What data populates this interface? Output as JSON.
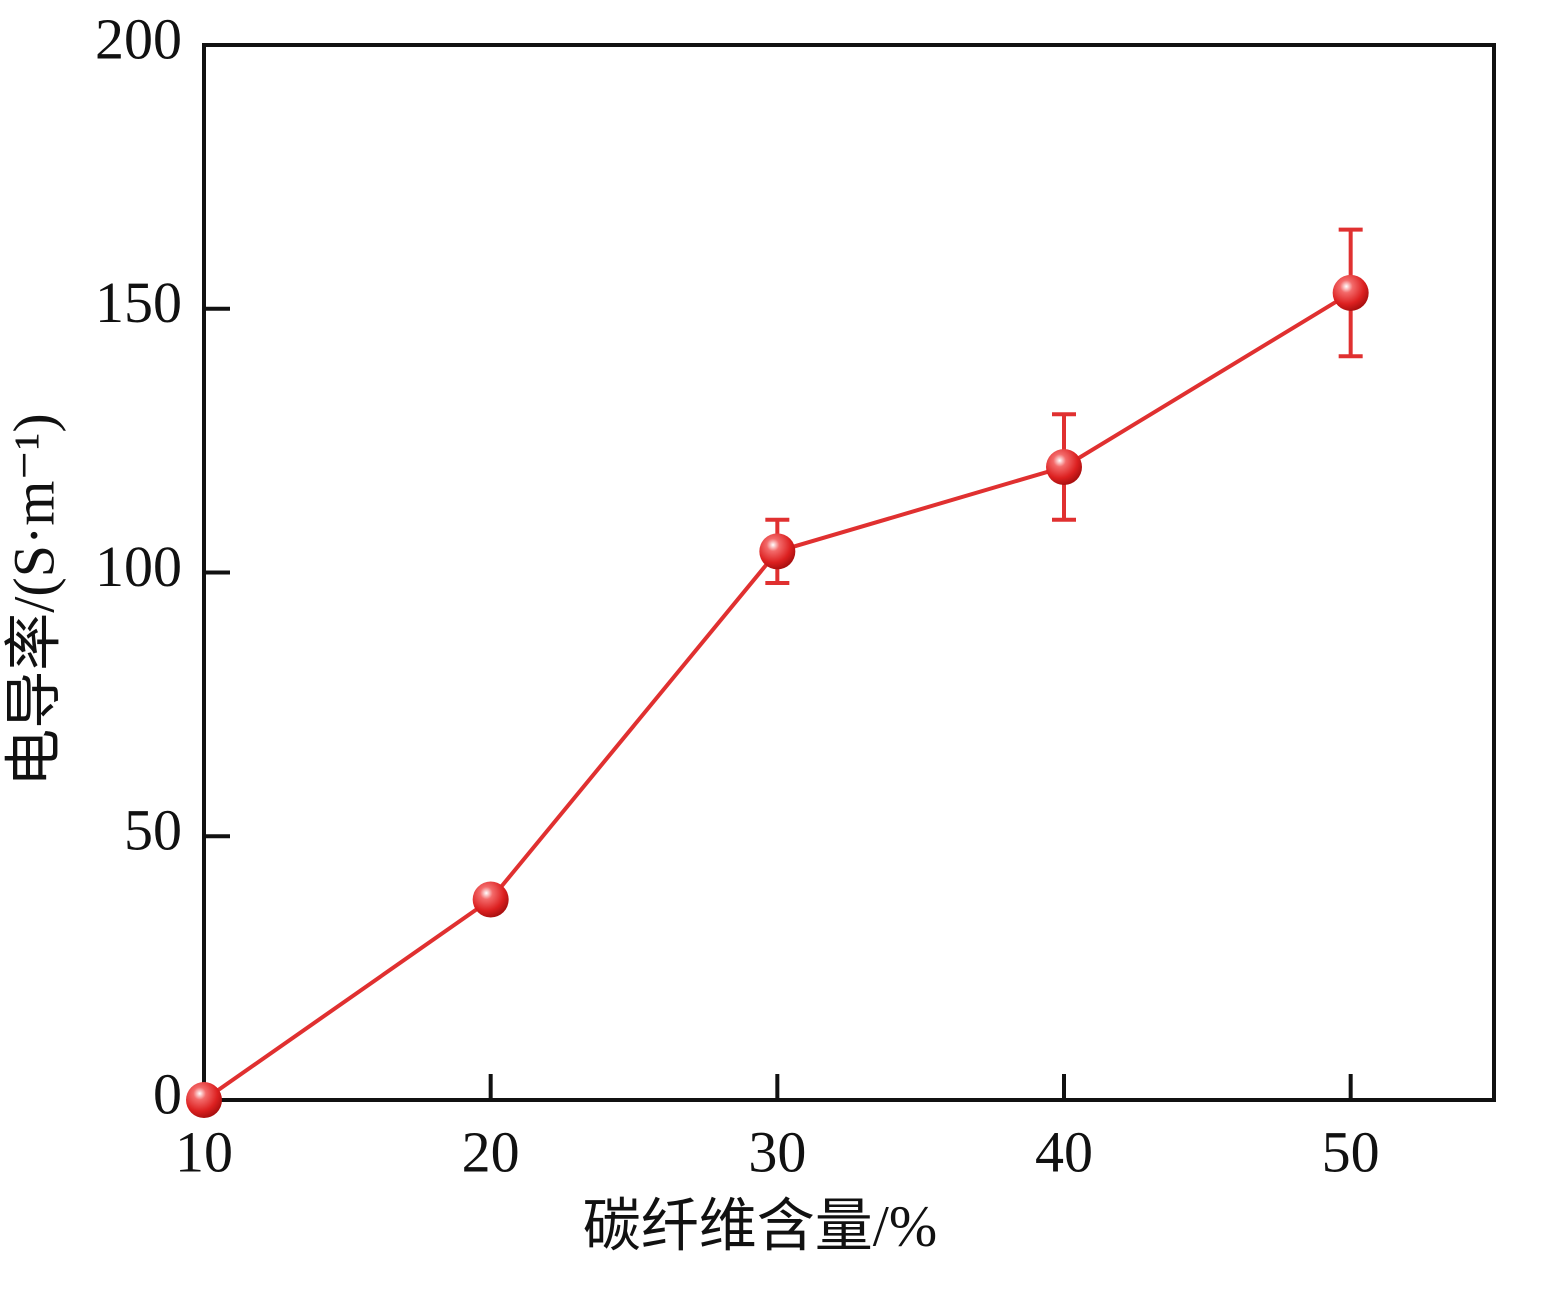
{
  "chart_data": {
    "type": "line",
    "x_label": "碳纤维含量/%",
    "y_label": "电导率/(S·m⁻¹)",
    "x": [
      10,
      20,
      30,
      40,
      50
    ],
    "series": [
      {
        "color": "#e03030",
        "values": [
          0,
          38,
          104,
          120,
          153
        ],
        "errors": [
          null,
          null,
          6,
          10,
          12
        ]
      }
    ],
    "xlim": [
      10,
      55
    ],
    "xticks": [
      10,
      20,
      30,
      40,
      50
    ],
    "ylim": [
      0,
      200
    ],
    "yticks": [
      0,
      50,
      100,
      150,
      200
    ]
  }
}
